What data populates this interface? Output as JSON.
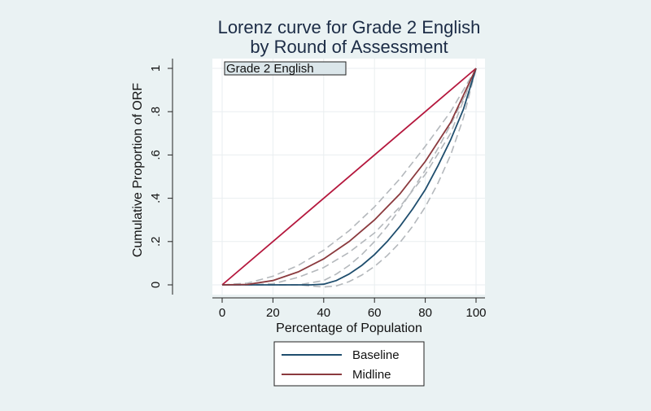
{
  "chart_data": {
    "type": "line",
    "title_line1": "Lorenz curve for Grade 2 English",
    "title_line2": "by Round of Assessment",
    "xlabel": "Percentage of Population",
    "ylabel": "Cumulative Proportion of ORF",
    "xlim": [
      0,
      100
    ],
    "ylim": [
      0,
      1
    ],
    "x_ticks": [
      0,
      20,
      40,
      60,
      80,
      100
    ],
    "x_tick_labels": [
      "0",
      "20",
      "40",
      "60",
      "80",
      "100"
    ],
    "y_ticks": [
      0,
      0.2,
      0.4,
      0.6,
      0.8,
      1
    ],
    "y_tick_labels": [
      "0",
      ".2",
      ".4",
      ".6",
      ".8",
      "1"
    ],
    "grid": true,
    "subgraph_label": "Grade 2 English",
    "legend_position": "bottom",
    "line_of_equality": {
      "x": [
        0,
        100
      ],
      "y": [
        0,
        1
      ],
      "color": "#b5173d"
    },
    "series": [
      {
        "name": "Baseline",
        "color": "#1f4e6e",
        "x": [
          0,
          10,
          20,
          30,
          35,
          40,
          45,
          50,
          55,
          60,
          65,
          70,
          75,
          80,
          85,
          90,
          95,
          100
        ],
        "y": [
          0,
          0,
          0,
          0,
          0,
          0.003,
          0.02,
          0.05,
          0.09,
          0.14,
          0.2,
          0.27,
          0.35,
          0.44,
          0.55,
          0.67,
          0.81,
          1
        ]
      },
      {
        "name": "Midline",
        "color": "#8b3a3e",
        "x": [
          0,
          10,
          20,
          30,
          40,
          50,
          60,
          70,
          80,
          90,
          100
        ],
        "y": [
          0,
          0.002,
          0.02,
          0.06,
          0.12,
          0.2,
          0.3,
          0.42,
          0.57,
          0.75,
          1
        ]
      }
    ],
    "confidence_bands": {
      "color": "#b4b8bc",
      "lines": [
        {
          "x": [
            0,
            10,
            20,
            30,
            40,
            50,
            60,
            70,
            80,
            90,
            100
          ],
          "y": [
            0,
            0.008,
            0.04,
            0.09,
            0.16,
            0.25,
            0.36,
            0.49,
            0.64,
            0.8,
            1
          ]
        },
        {
          "x": [
            0,
            10,
            20,
            30,
            40,
            50,
            60,
            70,
            80,
            90,
            100
          ],
          "y": [
            0,
            0,
            0.005,
            0.035,
            0.08,
            0.15,
            0.24,
            0.36,
            0.51,
            0.7,
            1
          ]
        },
        {
          "x": [
            0,
            10,
            20,
            30,
            40,
            45,
            50,
            55,
            60,
            65,
            70,
            75,
            80,
            85,
            90,
            95,
            100
          ],
          "y": [
            0,
            0,
            0,
            0,
            0.02,
            0.05,
            0.09,
            0.14,
            0.2,
            0.27,
            0.35,
            0.44,
            0.53,
            0.63,
            0.74,
            0.86,
            1
          ]
        },
        {
          "x": [
            0,
            10,
            20,
            30,
            40,
            45,
            50,
            55,
            60,
            65,
            70,
            75,
            80,
            85,
            90,
            95,
            100
          ],
          "y": [
            0,
            0,
            0,
            0,
            -0.01,
            -0.005,
            0.015,
            0.045,
            0.085,
            0.135,
            0.195,
            0.27,
            0.36,
            0.47,
            0.6,
            0.77,
            1
          ]
        }
      ]
    }
  }
}
